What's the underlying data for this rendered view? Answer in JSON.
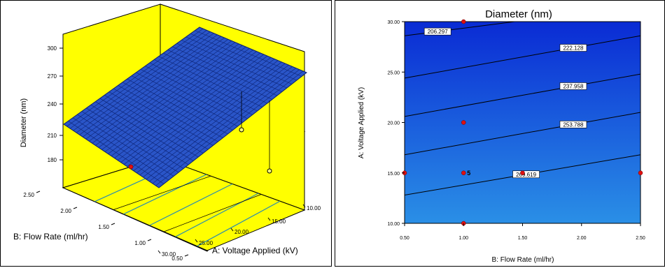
{
  "chart_data": [
    {
      "type": "surface",
      "zlabel": "Diameter (nm)",
      "xlabel": "A: Voltage Applied (kV)",
      "ylabel": "B: Flow Rate (ml/hr)",
      "z_ticks": [
        "180",
        "210",
        "240",
        "270",
        "300"
      ],
      "x_ticks": [
        "10.00",
        "15.00",
        "20.00",
        "25.00",
        "30.00"
      ],
      "y_ticks": [
        "0.50",
        "1.00",
        "1.50",
        "2.00",
        "2.50"
      ],
      "xlim": [
        10,
        30
      ],
      "ylim": [
        0.5,
        2.5
      ],
      "zlim": [
        180,
        300
      ],
      "surface_corners": [
        {
          "voltage": 10,
          "flow": 0.5,
          "diameter": 282
        },
        {
          "voltage": 10,
          "flow": 2.5,
          "diameter": 300
        },
        {
          "voltage": 30,
          "flow": 2.5,
          "diameter": 210
        },
        {
          "voltage": 30,
          "flow": 0.5,
          "diameter": 195
        }
      ],
      "design_points": [
        {
          "voltage": 15,
          "flow": 1.5,
          "diameter": 212,
          "marker": "open"
        },
        {
          "voltage": 10,
          "flow": 1.0,
          "diameter": 175,
          "marker": "open"
        },
        {
          "voltage": 30,
          "flow": 0.5,
          "diameter": 188,
          "marker": "filled"
        }
      ],
      "colors": {
        "wall": "#ffff00",
        "surface": "#2a55c8",
        "mesh": "#0a1f6e",
        "floor_contour": "#2b8cb0"
      }
    },
    {
      "type": "contour",
      "title": "Diameter (nm)",
      "xlabel": "B: Flow Rate (ml/hr)",
      "ylabel": "A: Voltage Applied (kV)",
      "x_ticks": [
        "0.50",
        "1.00",
        "1.50",
        "2.00",
        "2.50"
      ],
      "y_ticks": [
        "10.00",
        "15.00",
        "20.00",
        "25.00",
        "30.00"
      ],
      "xlim": [
        0.5,
        2.5
      ],
      "ylim": [
        10,
        30
      ],
      "contours": [
        {
          "level": "206.297",
          "start_y": 28.6,
          "end_y": 31.6,
          "label_x": 0.78
        },
        {
          "level": "222.128",
          "start_y": 24.4,
          "end_y": 28.6,
          "label_x": 1.93
        },
        {
          "level": "237.958",
          "start_y": 20.6,
          "end_y": 24.8,
          "label_x": 1.93
        },
        {
          "level": "253.788",
          "start_y": 16.8,
          "end_y": 21.0,
          "label_x": 1.93
        },
        {
          "level": "269.619",
          "start_y": 12.8,
          "end_y": 16.8,
          "label_x": 1.53
        }
      ],
      "design_points": [
        {
          "flow": 1.0,
          "voltage": 30
        },
        {
          "flow": 1.0,
          "voltage": 20
        },
        {
          "flow": 0.5,
          "voltage": 15
        },
        {
          "flow": 1.0,
          "voltage": 15,
          "label": "5"
        },
        {
          "flow": 1.5,
          "voltage": 15
        },
        {
          "flow": 2.5,
          "voltage": 15
        },
        {
          "flow": 1.0,
          "voltage": 10
        }
      ],
      "colors": {
        "fill_top": "#0a2bd4",
        "fill_bottom": "#2a8fe6",
        "line": "#000000",
        "point": "#e01010"
      }
    }
  ]
}
